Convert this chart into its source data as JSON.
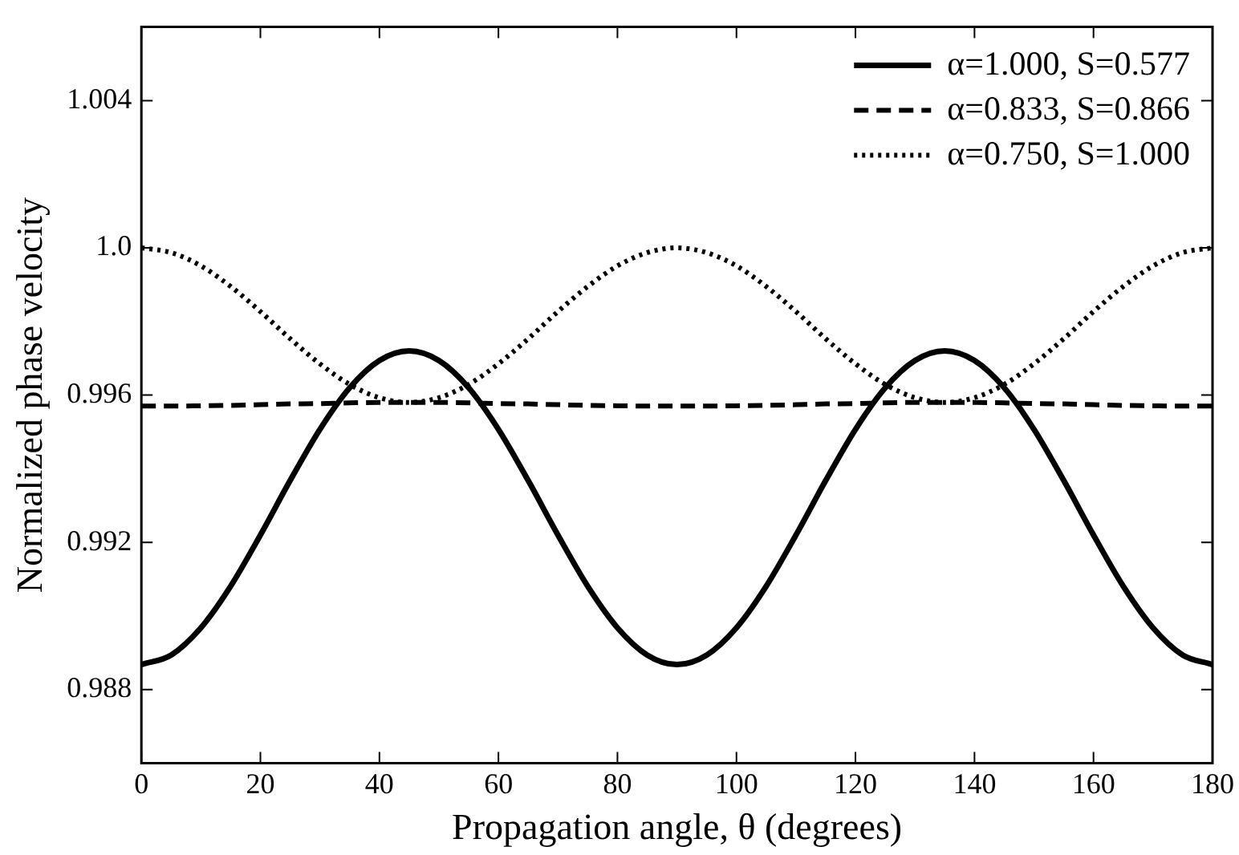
{
  "chart_data": {
    "type": "line",
    "xlabel": "Propagation angle, θ (degrees)",
    "ylabel": "Normalized phase velocity",
    "x": [
      0,
      5,
      10,
      15,
      20,
      25,
      30,
      35,
      40,
      45,
      50,
      55,
      60,
      65,
      70,
      75,
      80,
      85,
      90,
      95,
      100,
      105,
      110,
      115,
      120,
      125,
      130,
      135,
      140,
      145,
      150,
      155,
      160,
      165,
      170,
      175,
      180
    ],
    "series": [
      {
        "name": "α=1.000, S=0.577",
        "color": "#000000",
        "line_style": "solid",
        "values": [
          0.98868,
          0.98894,
          0.98968,
          0.99081,
          0.9922,
          0.99368,
          0.99507,
          0.9962,
          0.99694,
          0.9972,
          0.99694,
          0.9962,
          0.99507,
          0.99368,
          0.9922,
          0.99081,
          0.98968,
          0.98894,
          0.98868,
          0.98894,
          0.98968,
          0.99081,
          0.9922,
          0.99368,
          0.99507,
          0.9962,
          0.99694,
          0.9972,
          0.99694,
          0.9962,
          0.99507,
          0.99368,
          0.9922,
          0.99081,
          0.98968,
          0.98894,
          0.98868
        ]
      },
      {
        "name": "α=0.833, S=0.866",
        "color": "#000000",
        "line_style": "dashed",
        "values": [
          0.9957,
          0.9957,
          0.99571,
          0.99572,
          0.99574,
          0.99576,
          0.99577,
          0.99579,
          0.9958,
          0.9958,
          0.9958,
          0.99579,
          0.99577,
          0.99576,
          0.99574,
          0.99572,
          0.99571,
          0.9957,
          0.9957,
          0.9957,
          0.99571,
          0.99572,
          0.99574,
          0.99576,
          0.99577,
          0.99579,
          0.9958,
          0.9958,
          0.9958,
          0.99579,
          0.99577,
          0.99576,
          0.99574,
          0.99572,
          0.99571,
          0.9957,
          0.9957
        ]
      },
      {
        "name": "α=0.750, S=1.000",
        "color": "#000000",
        "line_style": "dotted",
        "values": [
          1.0,
          0.99987,
          0.99951,
          0.99895,
          0.99827,
          0.99753,
          0.99685,
          0.99629,
          0.99593,
          0.9958,
          0.99593,
          0.99629,
          0.99685,
          0.99753,
          0.99827,
          0.99895,
          0.99951,
          0.99987,
          1.0,
          0.99987,
          0.99951,
          0.99895,
          0.99827,
          0.99753,
          0.99685,
          0.99629,
          0.99593,
          0.9958,
          0.99593,
          0.99629,
          0.99685,
          0.99753,
          0.99827,
          0.99895,
          0.99951,
          0.99987,
          1.0
        ]
      }
    ],
    "xlim": [
      0,
      180
    ],
    "xticks": [
      0,
      20,
      40,
      60,
      80,
      100,
      120,
      140,
      160,
      180
    ],
    "ylim": [
      0.986,
      1.006
    ],
    "yticks": [
      0.988,
      0.992,
      0.996,
      {
        "value": 1.0,
        "label": "1.0"
      },
      1.004
    ],
    "grid": false,
    "legend": "top right",
    "marker": "none"
  }
}
